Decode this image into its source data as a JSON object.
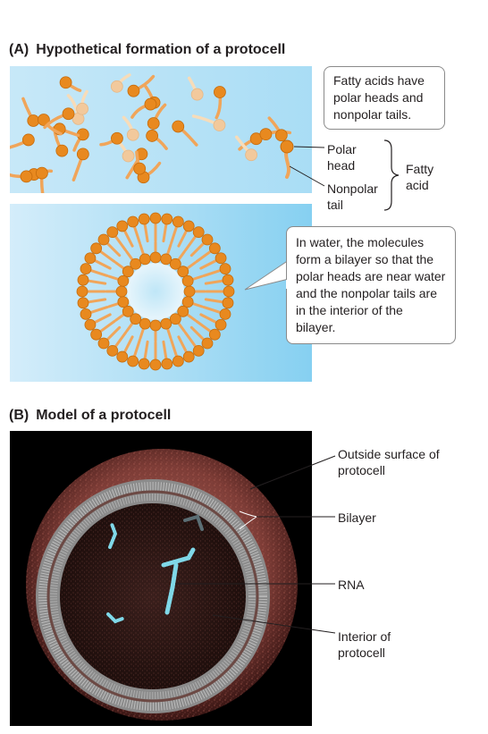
{
  "part_a": {
    "letter": "(A)",
    "title": "Hypothetical formation of a protocell",
    "callout_top": "Fatty acids have polar heads and nonpolar tails.",
    "label_polar_head": "Polar head",
    "label_nonpolar_tail": "Nonpolar tail",
    "label_fatty_acid": "Fatty acid",
    "callout_bilayer": "In water, the molecules form a bilayer so that the polar heads are near water and the nonpolar tails are in the interior of the bilayer."
  },
  "part_b": {
    "letter": "(B)",
    "title": "Model of a protocell",
    "label_outside_surface": "Outside surface of protocell",
    "label_bilayer": "Bilayer",
    "label_rna": "RNA",
    "label_interior": "Interior of protocell"
  },
  "colors": {
    "water_light": "#d6eefa",
    "water_dark": "#8cd3f2",
    "head_orange": "#e8891f",
    "tail_orange": "#f0a55a",
    "head_faded": "#f2c99c",
    "tail_faded": "#f7dcb9",
    "rna_cyan": "#7fd8e8"
  }
}
